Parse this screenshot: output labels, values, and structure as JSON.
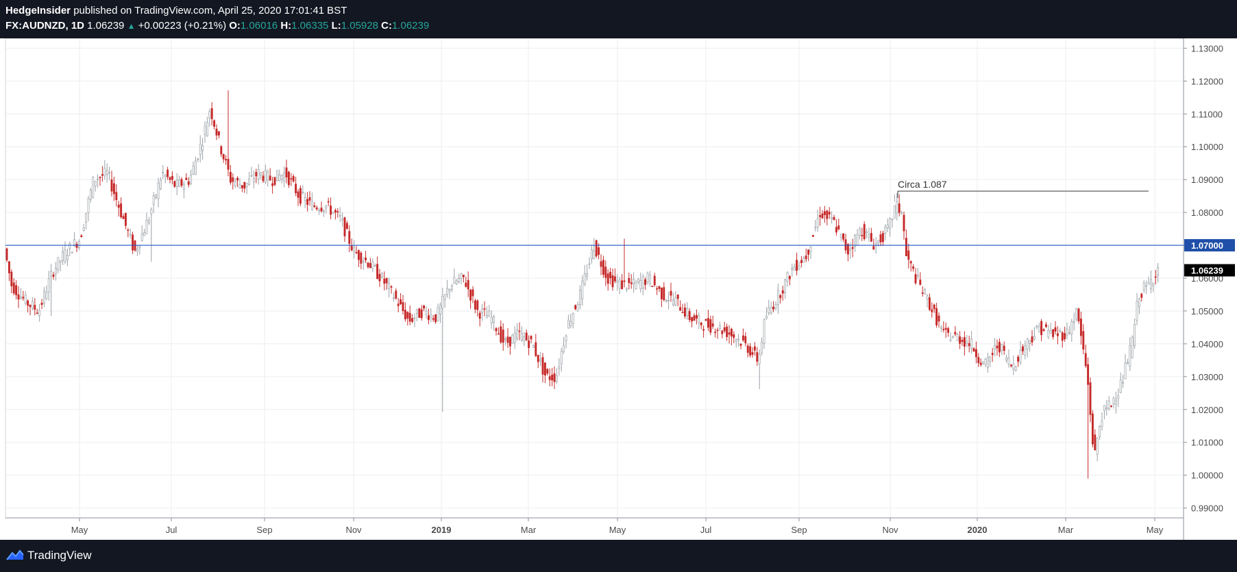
{
  "header": {
    "publisher": "HedgeInsider",
    "published_text": "published on TradingView.com, April 25, 2020 17:01:41 BST",
    "symbol": "FX:AUDNZD, 1D",
    "last": "1.06239",
    "change": "+0.00223 (+0.21%)",
    "o_label": "O:",
    "o_value": "1.06016",
    "h_label": "H:",
    "h_value": "1.06335",
    "l_label": "L:",
    "l_value": "1.05928",
    "c_label": "C:",
    "c_value": "1.06239"
  },
  "footer": {
    "brand": "TradingView"
  },
  "colors": {
    "up_candle": "#9aa0a6",
    "down_candle": "#c62828",
    "hline": "#1f55c0",
    "change_up": "#26a69a",
    "dark_bg": "#131722"
  },
  "chart_data": {
    "type": "candlestick",
    "symbol": "FX:AUDNZD",
    "interval": "1D",
    "x_ticks": [
      "May",
      "Jul",
      "Sep",
      "Nov",
      "2019",
      "Mar",
      "May",
      "Jul",
      "Sep",
      "Nov",
      "2020",
      "Mar",
      "May"
    ],
    "y_ticks": [
      "1.13000",
      "1.12000",
      "1.11000",
      "1.10000",
      "1.09000",
      "1.08000",
      "1.07000",
      "1.06000",
      "1.05000",
      "1.04000",
      "1.03000",
      "1.02000",
      "1.01000",
      "1.00000",
      "0.99000"
    ],
    "ylim": [
      0.987,
      1.133
    ],
    "price_line": {
      "value": 1.07,
      "label": "1.07000"
    },
    "last_price": {
      "value": 1.06239,
      "label": "1.06239"
    },
    "annotation": {
      "text": "Circa 1.087",
      "value": 1.0865
    },
    "anchors": [
      [
        0,
        1.08
      ],
      [
        20,
        1.058
      ],
      [
        40,
        1.053
      ],
      [
        60,
        1.05
      ],
      [
        80,
        1.062
      ],
      [
        100,
        1.068
      ],
      [
        120,
        1.072
      ],
      [
        140,
        1.09
      ],
      [
        160,
        1.092
      ],
      [
        180,
        1.08
      ],
      [
        200,
        1.068
      ],
      [
        220,
        1.078
      ],
      [
        240,
        1.092
      ],
      [
        260,
        1.088
      ],
      [
        280,
        1.09
      ],
      [
        300,
        1.103
      ],
      [
        310,
        1.112
      ],
      [
        325,
        1.1
      ],
      [
        340,
        1.09
      ],
      [
        360,
        1.088
      ],
      [
        380,
        1.092
      ],
      [
        400,
        1.09
      ],
      [
        420,
        1.092
      ],
      [
        440,
        1.085
      ],
      [
        460,
        1.082
      ],
      [
        480,
        1.082
      ],
      [
        500,
        1.078
      ],
      [
        520,
        1.068
      ],
      [
        540,
        1.065
      ],
      [
        560,
        1.06
      ],
      [
        580,
        1.054
      ],
      [
        600,
        1.047
      ],
      [
        620,
        1.05
      ],
      [
        640,
        1.048
      ],
      [
        660,
        1.058
      ],
      [
        680,
        1.06
      ],
      [
        700,
        1.05
      ],
      [
        720,
        1.048
      ],
      [
        740,
        1.04
      ],
      [
        760,
        1.043
      ],
      [
        780,
        1.04
      ],
      [
        800,
        1.03
      ],
      [
        815,
        1.03
      ],
      [
        830,
        1.045
      ],
      [
        850,
        1.055
      ],
      [
        870,
        1.07
      ],
      [
        890,
        1.06
      ],
      [
        910,
        1.058
      ],
      [
        930,
        1.058
      ],
      [
        950,
        1.06
      ],
      [
        970,
        1.055
      ],
      [
        990,
        1.053
      ],
      [
        1010,
        1.048
      ],
      [
        1030,
        1.046
      ],
      [
        1050,
        1.045
      ],
      [
        1070,
        1.043
      ],
      [
        1090,
        1.04
      ],
      [
        1110,
        1.035
      ],
      [
        1120,
        1.048
      ],
      [
        1140,
        1.055
      ],
      [
        1160,
        1.063
      ],
      [
        1180,
        1.067
      ],
      [
        1200,
        1.08
      ],
      [
        1220,
        1.077
      ],
      [
        1240,
        1.068
      ],
      [
        1260,
        1.075
      ],
      [
        1280,
        1.07
      ],
      [
        1300,
        1.075
      ],
      [
        1310,
        1.082
      ],
      [
        1320,
        1.08
      ],
      [
        1325,
        1.067
      ],
      [
        1340,
        1.06
      ],
      [
        1360,
        1.052
      ],
      [
        1380,
        1.043
      ],
      [
        1400,
        1.042
      ],
      [
        1420,
        1.04
      ],
      [
        1440,
        1.033
      ],
      [
        1460,
        1.04
      ],
      [
        1480,
        1.033
      ],
      [
        1500,
        1.04
      ],
      [
        1520,
        1.045
      ],
      [
        1540,
        1.043
      ],
      [
        1560,
        1.043
      ],
      [
        1575,
        1.05
      ],
      [
        1590,
        1.03
      ],
      [
        1600,
        1.005
      ],
      [
        1610,
        1.018
      ],
      [
        1625,
        1.022
      ],
      [
        1640,
        1.028
      ],
      [
        1655,
        1.04
      ],
      [
        1665,
        1.055
      ],
      [
        1680,
        1.058
      ],
      [
        1685,
        1.06
      ],
      [
        1692,
        1.063
      ]
    ]
  }
}
